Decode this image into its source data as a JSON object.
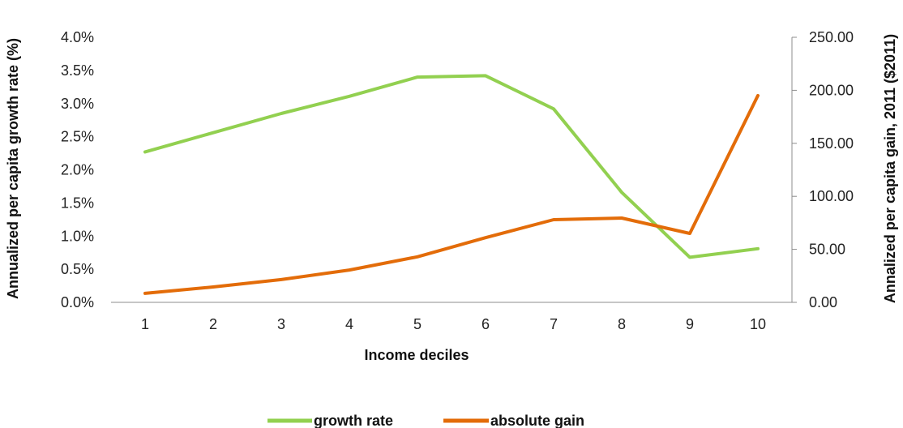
{
  "chart_data": {
    "type": "line",
    "title": "",
    "xlabel": "Income deciles",
    "ylabel_left": "Annualized per capita growth rate (%)",
    "ylabel_right": "Annalized per capita gain, 2011 ($2011)",
    "categories": [
      "1",
      "2",
      "3",
      "4",
      "5",
      "6",
      "7",
      "8",
      "9",
      "10"
    ],
    "y_left": {
      "lim": [
        0,
        4.0
      ],
      "ticks": [
        "0.0%",
        "0.5%",
        "1.0%",
        "1.5%",
        "2.0%",
        "2.5%",
        "3.0%",
        "3.5%",
        "4.0%"
      ]
    },
    "y_right": {
      "lim": [
        0,
        250
      ],
      "ticks": [
        "0.00",
        "50.00",
        "100.00",
        "150.00",
        "200.00",
        "250.00"
      ]
    },
    "series": [
      {
        "name": "growth rate",
        "axis": "left",
        "color": "#92d050",
        "values": [
          2.27,
          2.56,
          2.85,
          3.11,
          3.4,
          3.42,
          2.92,
          1.66,
          0.68,
          0.81
        ]
      },
      {
        "name": "absolute gain",
        "axis": "right",
        "color": "#e36c09",
        "values": [
          8.5,
          14.5,
          21.5,
          30.5,
          43.0,
          61.0,
          78.0,
          79.5,
          65.0,
          195.0
        ]
      }
    ],
    "grid": false,
    "legend": "bottom"
  }
}
